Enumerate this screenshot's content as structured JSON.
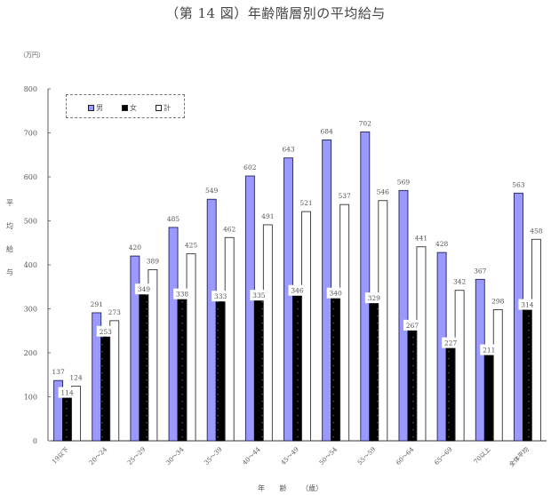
{
  "title": "（第 14 図）年齢階層別の平均給与",
  "unit_label": "（万円）",
  "y_axis_label": "平均給与",
  "x_axis_label": "年 齢 （歳）",
  "legend": [
    {
      "label": "男",
      "color": "#9999ff"
    },
    {
      "label": "女",
      "color": "#000000"
    },
    {
      "label": "計",
      "color": "#ffffff"
    }
  ],
  "chart_data": {
    "type": "bar",
    "title": "（第 14 図）年齢階層別の平均給与",
    "xlabel": "年 齢 （歳）",
    "ylabel": "平均給与",
    "unit": "万円",
    "ylim": [
      0,
      800
    ],
    "yticks": [
      0,
      100,
      200,
      300,
      400,
      500,
      600,
      700,
      800
    ],
    "grid": false,
    "legend_position": "top-left (inside plot)",
    "categories": [
      "19以下",
      "20～24",
      "25～29",
      "30～34",
      "35～39",
      "40～44",
      "45～49",
      "50～54",
      "55～59",
      "60～64",
      "65～69",
      "70以上",
      "全体平均"
    ],
    "series": [
      {
        "name": "男",
        "color": "#9999ff",
        "values": [
          137,
          291,
          420,
          485,
          549,
          602,
          643,
          684,
          702,
          569,
          428,
          367,
          563
        ]
      },
      {
        "name": "女",
        "color": "#000000",
        "values": [
          114,
          253,
          349,
          338,
          333,
          335,
          346,
          340,
          329,
          267,
          227,
          211,
          314
        ]
      },
      {
        "name": "計",
        "color": "#ffffff",
        "values": [
          124,
          273,
          389,
          425,
          462,
          491,
          521,
          537,
          546,
          441,
          342,
          298,
          458
        ]
      }
    ]
  }
}
